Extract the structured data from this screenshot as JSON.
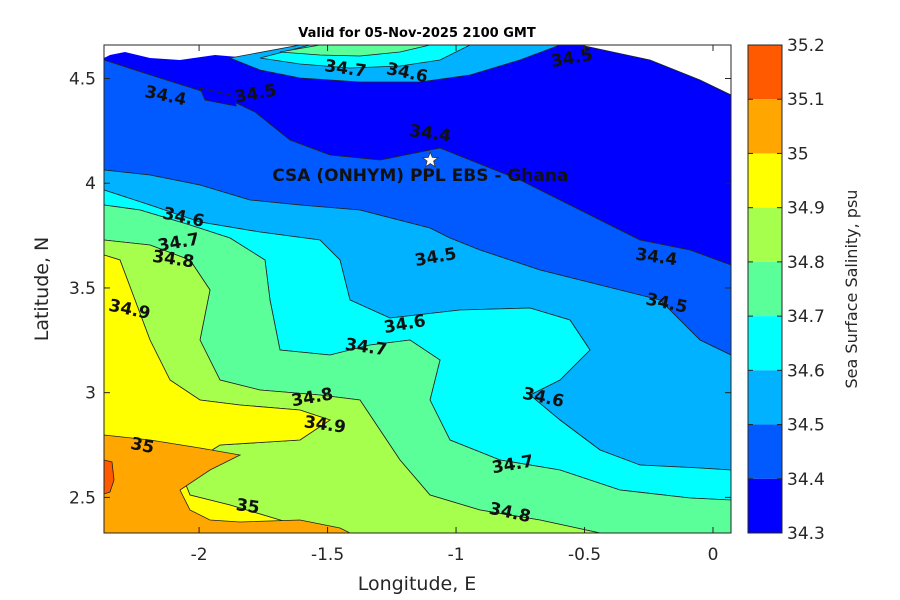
{
  "chart_data": {
    "type": "contour",
    "title": "Valid for 05-Nov-2025 2100 GMT",
    "xlabel": "Longitude, E",
    "ylabel": "Latitude, N",
    "xlim": [
      -2.37,
      0.07
    ],
    "ylim": [
      2.33,
      4.66
    ],
    "xticks": [
      {
        "value": -2,
        "label": "-2"
      },
      {
        "value": -1.5,
        "label": "-1.5"
      },
      {
        "value": -1,
        "label": "-1"
      },
      {
        "value": -0.5,
        "label": "-0.5"
      },
      {
        "value": 0,
        "label": "0"
      }
    ],
    "yticks": [
      {
        "value": 2.5,
        "label": "2.5"
      },
      {
        "value": 3,
        "label": "3"
      },
      {
        "value": 3.5,
        "label": "3.5"
      },
      {
        "value": 4,
        "label": "4"
      },
      {
        "value": 4.5,
        "label": "4.5"
      }
    ],
    "colorbar": {
      "label": "Sea Surface Salinity, psu",
      "levels": [
        {
          "value": "35.2",
          "color": "#ff5a00"
        },
        {
          "value": "35.1",
          "color": "#ffa600"
        },
        {
          "value": "35",
          "color": "#ffff00"
        },
        {
          "value": "34.9",
          "color": "#a6ff4d"
        },
        {
          "value": "34.8",
          "color": "#5aff9a"
        },
        {
          "value": "34.7",
          "color": "#00ffff"
        },
        {
          "value": "34.6",
          "color": "#00b2ff"
        },
        {
          "value": "34.5",
          "color": "#005aff"
        },
        {
          "value": "34.4",
          "color": "#0000ff"
        },
        {
          "value": "34.3",
          "color": ""
        }
      ]
    },
    "contour_labels": [
      {
        "text": "34.4",
        "lon": -2.13,
        "lat": 4.42
      },
      {
        "text": "34.5",
        "lon": -1.78,
        "lat": 4.43
      },
      {
        "text": "34.7",
        "lon": -1.43,
        "lat": 4.55
      },
      {
        "text": "34.6",
        "lon": -1.19,
        "lat": 4.53
      },
      {
        "text": "34.5",
        "lon": -0.55,
        "lat": 4.6
      },
      {
        "text": "34.4",
        "lon": -1.1,
        "lat": 4.24
      },
      {
        "text": "34.6",
        "lon": -2.06,
        "lat": 3.84
      },
      {
        "text": "34.7",
        "lon": -2.08,
        "lat": 3.72
      },
      {
        "text": "34.8",
        "lon": -2.1,
        "lat": 3.64
      },
      {
        "text": "34.9",
        "lon": -2.27,
        "lat": 3.4
      },
      {
        "text": "34.5",
        "lon": -1.08,
        "lat": 3.65
      },
      {
        "text": "34.4",
        "lon": -0.22,
        "lat": 3.65
      },
      {
        "text": "34.5",
        "lon": -0.18,
        "lat": 3.43
      },
      {
        "text": "34.6",
        "lon": -1.2,
        "lat": 3.33
      },
      {
        "text": "34.7",
        "lon": -1.35,
        "lat": 3.22
      },
      {
        "text": "34.6",
        "lon": -0.66,
        "lat": 2.98
      },
      {
        "text": "34.8",
        "lon": -1.56,
        "lat": 2.98
      },
      {
        "text": "34.9",
        "lon": -1.51,
        "lat": 2.85
      },
      {
        "text": "35",
        "lon": -2.22,
        "lat": 2.75
      },
      {
        "text": "34.7",
        "lon": -0.78,
        "lat": 2.66
      },
      {
        "text": "35",
        "lon": -1.81,
        "lat": 2.46
      },
      {
        "text": "34.8",
        "lon": -0.79,
        "lat": 2.43
      }
    ],
    "site": {
      "label": "CSA (ONHYM) PPL EBS  - Ghana",
      "lon": -1.1,
      "lat": 4.11,
      "marker": "white-star"
    }
  }
}
